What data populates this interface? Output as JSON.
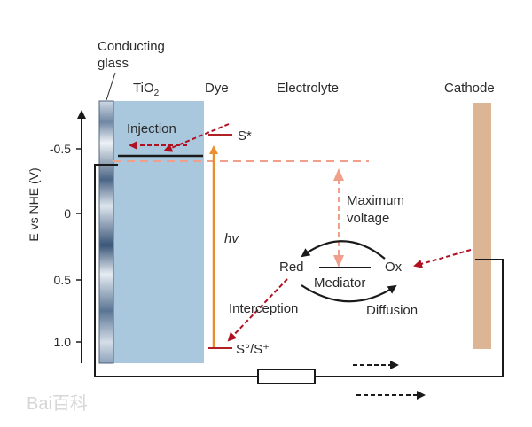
{
  "labels": {
    "conducting_glass_line1": "Conducting",
    "conducting_glass_line2": "glass",
    "tio2_main": "TiO",
    "tio2_sub": "2",
    "dye": "Dye",
    "electrolyte": "Electrolyte",
    "cathode": "Cathode",
    "injection": "Injection",
    "s_star": "S*",
    "s_ground": "S°/S⁺",
    "hv": "hv",
    "max_voltage_line1": "Maximum",
    "max_voltage_line2": "voltage",
    "red": "Red",
    "ox": "Ox",
    "mediator": "Mediator",
    "interception": "Interception",
    "diffusion": "Diffusion"
  },
  "axis": {
    "title": "E vs NHE (V)",
    "ticks": [
      "-0.5",
      "0",
      "0.5",
      "1.0"
    ]
  },
  "watermark": "Bai百科",
  "colors": {
    "tio2_fill": "#a9c7dd",
    "cathode_fill": "#dbb594",
    "dye_arrow": "#e8902e",
    "red_arrow": "#b01020",
    "salmon": "#f0a08a",
    "dark_red_line": "#b02025",
    "circuit": "#1a1a1a"
  }
}
